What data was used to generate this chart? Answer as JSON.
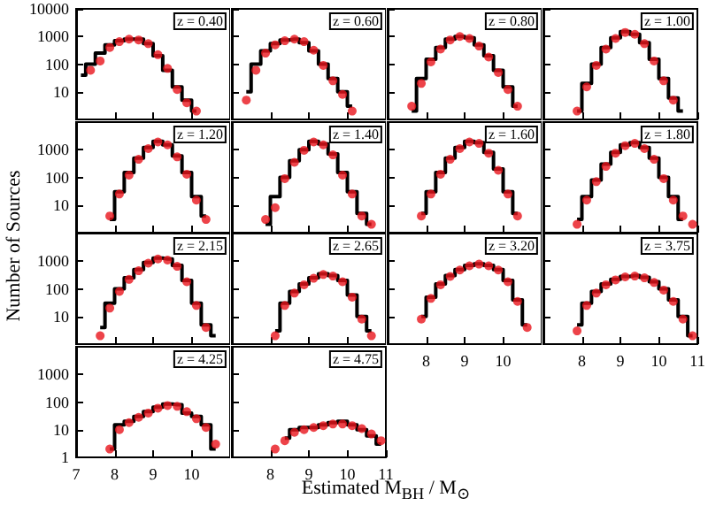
{
  "chart_data": [
    {
      "type": "step",
      "ylabel": "Number of Sources",
      "annotations": [
        "z = 0.40"
      ],
      "x": [
        7.125,
        7.375,
        7.625,
        7.875,
        8.125,
        8.375,
        8.625,
        8.875,
        9.125,
        9.375,
        9.625,
        9.875,
        10.125
      ],
      "series": [
        {
          "color": "#000000",
          "values": [
            40,
            100,
            250,
            500,
            700,
            800,
            800,
            550,
            200,
            60,
            15,
            5,
            2
          ]
        },
        {
          "type": "scatter",
          "color": "#e8141b",
          "values": [
            null,
            60,
            130,
            400,
            650,
            800,
            750,
            550,
            220,
            70,
            12,
            4,
            2
          ]
        }
      ],
      "xlim": [
        7,
        11
      ],
      "xticks": [
        7,
        8,
        9,
        10
      ],
      "ylim": [
        1,
        10000
      ],
      "yticks": [
        10,
        100,
        1000,
        10000
      ],
      "log": "y",
      "tick_labels": "y"
    },
    {
      "type": "step",
      "annotations": [
        "z = 0.60"
      ],
      "x": [
        7.375,
        7.625,
        7.875,
        8.125,
        8.375,
        8.625,
        8.875,
        9.125,
        9.375,
        9.625,
        9.875,
        10.125
      ],
      "series": [
        {
          "color": "#000000",
          "values": [
            10,
            100,
            300,
            550,
            750,
            800,
            600,
            300,
            100,
            30,
            10,
            3
          ]
        },
        {
          "type": "scatter",
          "color": "#e8141b",
          "values": [
            5,
            60,
            250,
            500,
            700,
            800,
            650,
            320,
            90,
            25,
            8,
            2
          ]
        }
      ],
      "xlim": [
        7,
        11
      ],
      "xticks": [
        8,
        9,
        10,
        11
      ],
      "ylim": [
        1,
        10000
      ],
      "yticks": [
        10,
        100,
        1000,
        10000
      ],
      "log": "y",
      "tick_labels": false
    },
    {
      "type": "step",
      "annotations": [
        "z = 0.80"
      ],
      "x": [
        7.625,
        7.875,
        8.125,
        8.375,
        8.625,
        8.875,
        9.125,
        9.375,
        9.625,
        9.875,
        10.125,
        10.375
      ],
      "series": [
        {
          "color": "#000000",
          "values": [
            2,
            30,
            150,
            400,
            800,
            1000,
            900,
            500,
            200,
            60,
            15,
            3
          ]
        },
        {
          "type": "scatter",
          "color": "#e8141b",
          "values": [
            3,
            20,
            120,
            350,
            750,
            1000,
            850,
            450,
            180,
            50,
            12,
            3
          ]
        }
      ],
      "xlim": [
        7,
        11
      ],
      "xticks": [
        8,
        9,
        10
      ],
      "ylim": [
        1,
        10000
      ],
      "yticks": [
        10,
        100,
        1000,
        10000
      ],
      "log": "y",
      "tick_labels": false
    },
    {
      "type": "step",
      "annotations": [
        "z = 1.00"
      ],
      "x": [
        7.875,
        8.125,
        8.375,
        8.625,
        8.875,
        9.125,
        9.375,
        9.625,
        9.875,
        10.125,
        10.375,
        10.625
      ],
      "series": [
        {
          "color": "#000000",
          "values": [
            2,
            20,
            100,
            400,
            900,
            1500,
            1200,
            600,
            150,
            30,
            6,
            2
          ]
        },
        {
          "type": "scatter",
          "color": "#e8141b",
          "values": [
            2,
            15,
            90,
            350,
            850,
            1400,
            1200,
            550,
            130,
            25,
            5,
            null
          ]
        }
      ],
      "xlim": [
        7,
        11
      ],
      "xticks": [
        8,
        9,
        10,
        11
      ],
      "ylim": [
        1,
        10000
      ],
      "yticks": [
        10,
        100,
        1000,
        10000
      ],
      "log": "y",
      "tick_labels": false
    },
    {
      "type": "step",
      "annotations": [
        "z = 1.20"
      ],
      "x": [
        7.875,
        8.125,
        8.375,
        8.625,
        8.875,
        9.125,
        9.375,
        9.625,
        9.875,
        10.125,
        10.375
      ],
      "series": [
        {
          "color": "#000000",
          "values": [
            3,
            30,
            150,
            500,
            1200,
            2000,
            1500,
            600,
            150,
            20,
            4
          ]
        },
        {
          "type": "scatter",
          "color": "#e8141b",
          "values": [
            4,
            25,
            120,
            450,
            1100,
            1900,
            1500,
            550,
            130,
            15,
            3
          ]
        }
      ],
      "xlim": [
        7,
        11
      ],
      "xticks": [
        7,
        8,
        9,
        10
      ],
      "ylim": [
        1,
        10000
      ],
      "yticks": [
        10,
        100,
        1000
      ],
      "log": "y",
      "tick_labels": "y"
    },
    {
      "type": "step",
      "annotations": [
        "z = 1.40"
      ],
      "x": [
        7.875,
        8.125,
        8.375,
        8.625,
        8.875,
        9.125,
        9.375,
        9.625,
        9.875,
        10.125,
        10.375,
        10.625
      ],
      "series": [
        {
          "color": "#000000",
          "values": [
            2,
            20,
            100,
            400,
            1000,
            2000,
            1600,
            700,
            150,
            30,
            5,
            2
          ]
        },
        {
          "type": "scatter",
          "color": "#e8141b",
          "values": [
            3,
            8,
            90,
            350,
            950,
            1900,
            1500,
            650,
            120,
            25,
            4,
            2
          ]
        }
      ],
      "xlim": [
        7,
        11
      ],
      "xticks": [
        8,
        9,
        10,
        11
      ],
      "ylim": [
        1,
        10000
      ],
      "yticks": [
        10,
        100,
        1000
      ],
      "log": "y",
      "tick_labels": false
    },
    {
      "type": "step",
      "annotations": [
        "z = 1.60"
      ],
      "x": [
        7.875,
        8.125,
        8.375,
        8.625,
        8.875,
        9.125,
        9.375,
        9.625,
        9.875,
        10.125,
        10.375
      ],
      "series": [
        {
          "color": "#000000",
          "values": [
            5,
            30,
            150,
            500,
            1200,
            2000,
            1800,
            800,
            200,
            30,
            5
          ]
        },
        {
          "type": "scatter",
          "color": "#e8141b",
          "values": [
            4,
            25,
            130,
            450,
            1100,
            1900,
            1700,
            750,
            180,
            25,
            4
          ]
        }
      ],
      "xlim": [
        7,
        11
      ],
      "xticks": [
        8,
        9,
        10
      ],
      "ylim": [
        1,
        10000
      ],
      "yticks": [
        10,
        100,
        1000
      ],
      "log": "y",
      "tick_labels": false
    },
    {
      "type": "step",
      "annotations": [
        "z = 1.80"
      ],
      "x": [
        7.875,
        8.125,
        8.375,
        8.625,
        8.875,
        9.125,
        9.375,
        9.625,
        9.875,
        10.125,
        10.375,
        10.625,
        10.875
      ],
      "series": [
        {
          "color": "#000000",
          "x": [
            7.875,
            8.125,
            8.375,
            8.625,
            8.875,
            9.125,
            9.375,
            9.625,
            9.875,
            10.125,
            10.375,
            10.625
          ],
          "values": [
            3,
            20,
            80,
            300,
            800,
            1500,
            1800,
            1200,
            500,
            100,
            20,
            3
          ]
        },
        {
          "type": "scatter",
          "color": "#e8141b",
          "values": [
            2,
            15,
            70,
            250,
            750,
            1400,
            1700,
            1100,
            450,
            90,
            15,
            4,
            2
          ]
        }
      ],
      "xlim": [
        7,
        11
      ],
      "xticks": [
        8,
        9,
        10,
        11
      ],
      "ylim": [
        1,
        10000
      ],
      "yticks": [
        10,
        100,
        1000
      ],
      "log": "y",
      "tick_labels": false
    },
    {
      "type": "step",
      "annotations": [
        "z = 2.15"
      ],
      "x": [
        7.625,
        7.875,
        8.125,
        8.375,
        8.625,
        8.875,
        9.125,
        9.375,
        9.625,
        9.875,
        10.125,
        10.375,
        10.625
      ],
      "series": [
        {
          "color": "#000000",
          "values": [
            4,
            30,
            100,
            250,
            500,
            900,
            1300,
            1200,
            700,
            200,
            30,
            5,
            2
          ]
        },
        {
          "type": "scatter",
          "color": "#e8141b",
          "values": [
            2,
            20,
            80,
            220,
            450,
            850,
            1200,
            1100,
            650,
            180,
            25,
            4,
            null
          ]
        }
      ],
      "xlim": [
        7,
        11
      ],
      "xticks": [
        7,
        8,
        9,
        10
      ],
      "ylim": [
        1,
        10000
      ],
      "yticks": [
        10,
        100,
        1000
      ],
      "log": "y",
      "tick_labels": "y"
    },
    {
      "type": "step",
      "annotations": [
        "z = 2.65"
      ],
      "x": [
        8.125,
        8.375,
        8.625,
        8.875,
        9.125,
        9.375,
        9.625,
        9.875,
        10.125,
        10.375,
        10.625
      ],
      "series": [
        {
          "color": "#000000",
          "values": [
            3,
            30,
            80,
            150,
            250,
            350,
            300,
            200,
            60,
            10,
            3
          ]
        },
        {
          "type": "scatter",
          "color": "#e8141b",
          "values": [
            2,
            25,
            70,
            140,
            240,
            330,
            290,
            180,
            50,
            8,
            2
          ]
        }
      ],
      "xlim": [
        7,
        11
      ],
      "xticks": [
        8,
        9,
        10,
        11
      ],
      "ylim": [
        1,
        10000
      ],
      "yticks": [
        10,
        100,
        1000
      ],
      "log": "y",
      "tick_labels": false
    },
    {
      "type": "step",
      "annotations": [
        "z = 3.20"
      ],
      "x": [
        7.875,
        8.125,
        8.375,
        8.625,
        8.875,
        9.125,
        9.375,
        9.625,
        9.875,
        10.125,
        10.375,
        10.625
      ],
      "series": [
        {
          "color": "#000000",
          "values": [
            10,
            50,
            150,
            300,
            500,
            700,
            800,
            700,
            500,
            200,
            40,
            5
          ]
        },
        {
          "type": "scatter",
          "color": "#e8141b",
          "values": [
            8,
            45,
            140,
            280,
            480,
            680,
            780,
            680,
            480,
            180,
            35,
            4
          ]
        }
      ],
      "xlim": [
        7,
        11
      ],
      "xticks": [
        8,
        9,
        10
      ],
      "ylim": [
        1,
        10000
      ],
      "yticks": [
        10,
        100,
        1000
      ],
      "log": "y",
      "tick_labels": "x"
    },
    {
      "type": "step",
      "annotations": [
        "z = 3.75"
      ],
      "x": [
        7.875,
        8.125,
        8.375,
        8.625,
        8.875,
        9.125,
        9.375,
        9.625,
        9.875,
        10.125,
        10.375,
        10.625,
        10.875
      ],
      "series": [
        {
          "color": "#000000",
          "values": [
            5,
            30,
            80,
            150,
            220,
            280,
            300,
            260,
            180,
            100,
            40,
            10,
            2
          ]
        },
        {
          "type": "scatter",
          "color": "#e8141b",
          "values": [
            3,
            25,
            70,
            140,
            210,
            270,
            290,
            250,
            170,
            90,
            35,
            8,
            2
          ]
        }
      ],
      "xlim": [
        7,
        11
      ],
      "xticks": [
        8,
        9,
        10,
        11
      ],
      "ylim": [
        1,
        10000
      ],
      "yticks": [
        10,
        100,
        1000
      ],
      "log": "y",
      "tick_labels": "x"
    },
    {
      "type": "step",
      "annotations": [
        "z = 4.25"
      ],
      "x": [
        7.875,
        8.125,
        8.375,
        8.625,
        8.875,
        9.125,
        9.375,
        9.625,
        9.875,
        10.125,
        10.375,
        10.625
      ],
      "series": [
        {
          "color": "#000000",
          "values": [
            2,
            15,
            20,
            30,
            45,
            65,
            85,
            80,
            40,
            30,
            15,
            2
          ]
        },
        {
          "type": "scatter",
          "color": "#e8141b",
          "values": [
            2,
            10,
            18,
            28,
            40,
            60,
            75,
            70,
            45,
            25,
            12,
            3
          ]
        }
      ],
      "xlim": [
        7,
        11
      ],
      "xticks": [
        7,
        8,
        9,
        10
      ],
      "ylim": [
        1,
        10000
      ],
      "yticks": [
        1,
        10,
        100,
        1000
      ],
      "log": "y"
    },
    {
      "type": "step",
      "xlabel": "Estimated M$_{BH}$ / M$_{⊙}$",
      "annotations": [
        "z = 4.75"
      ],
      "x": [
        8.125,
        8.375,
        8.625,
        8.875,
        9.125,
        9.375,
        9.625,
        9.875,
        10.125,
        10.375,
        10.625,
        10.875
      ],
      "series": [
        {
          "color": "#000000",
          "x": [
            8.375,
            8.625,
            8.875,
            9.125,
            9.375,
            9.625,
            9.875,
            10.125,
            10.375,
            10.625,
            10.875
          ],
          "values": [
            5,
            10,
            12,
            12,
            15,
            18,
            20,
            15,
            10,
            6,
            3
          ]
        },
        {
          "type": "scatter",
          "color": "#e8141b",
          "values": [
            2,
            4,
            8,
            10,
            12,
            14,
            16,
            16,
            14,
            11,
            7,
            4
          ]
        }
      ],
      "xlim": [
        7,
        11
      ],
      "xticks": [
        8,
        9,
        10,
        11
      ],
      "ylim": [
        1,
        10000
      ],
      "yticks": [
        1,
        10,
        100,
        1000
      ],
      "log": "y",
      "tick_labels": "x"
    }
  ]
}
